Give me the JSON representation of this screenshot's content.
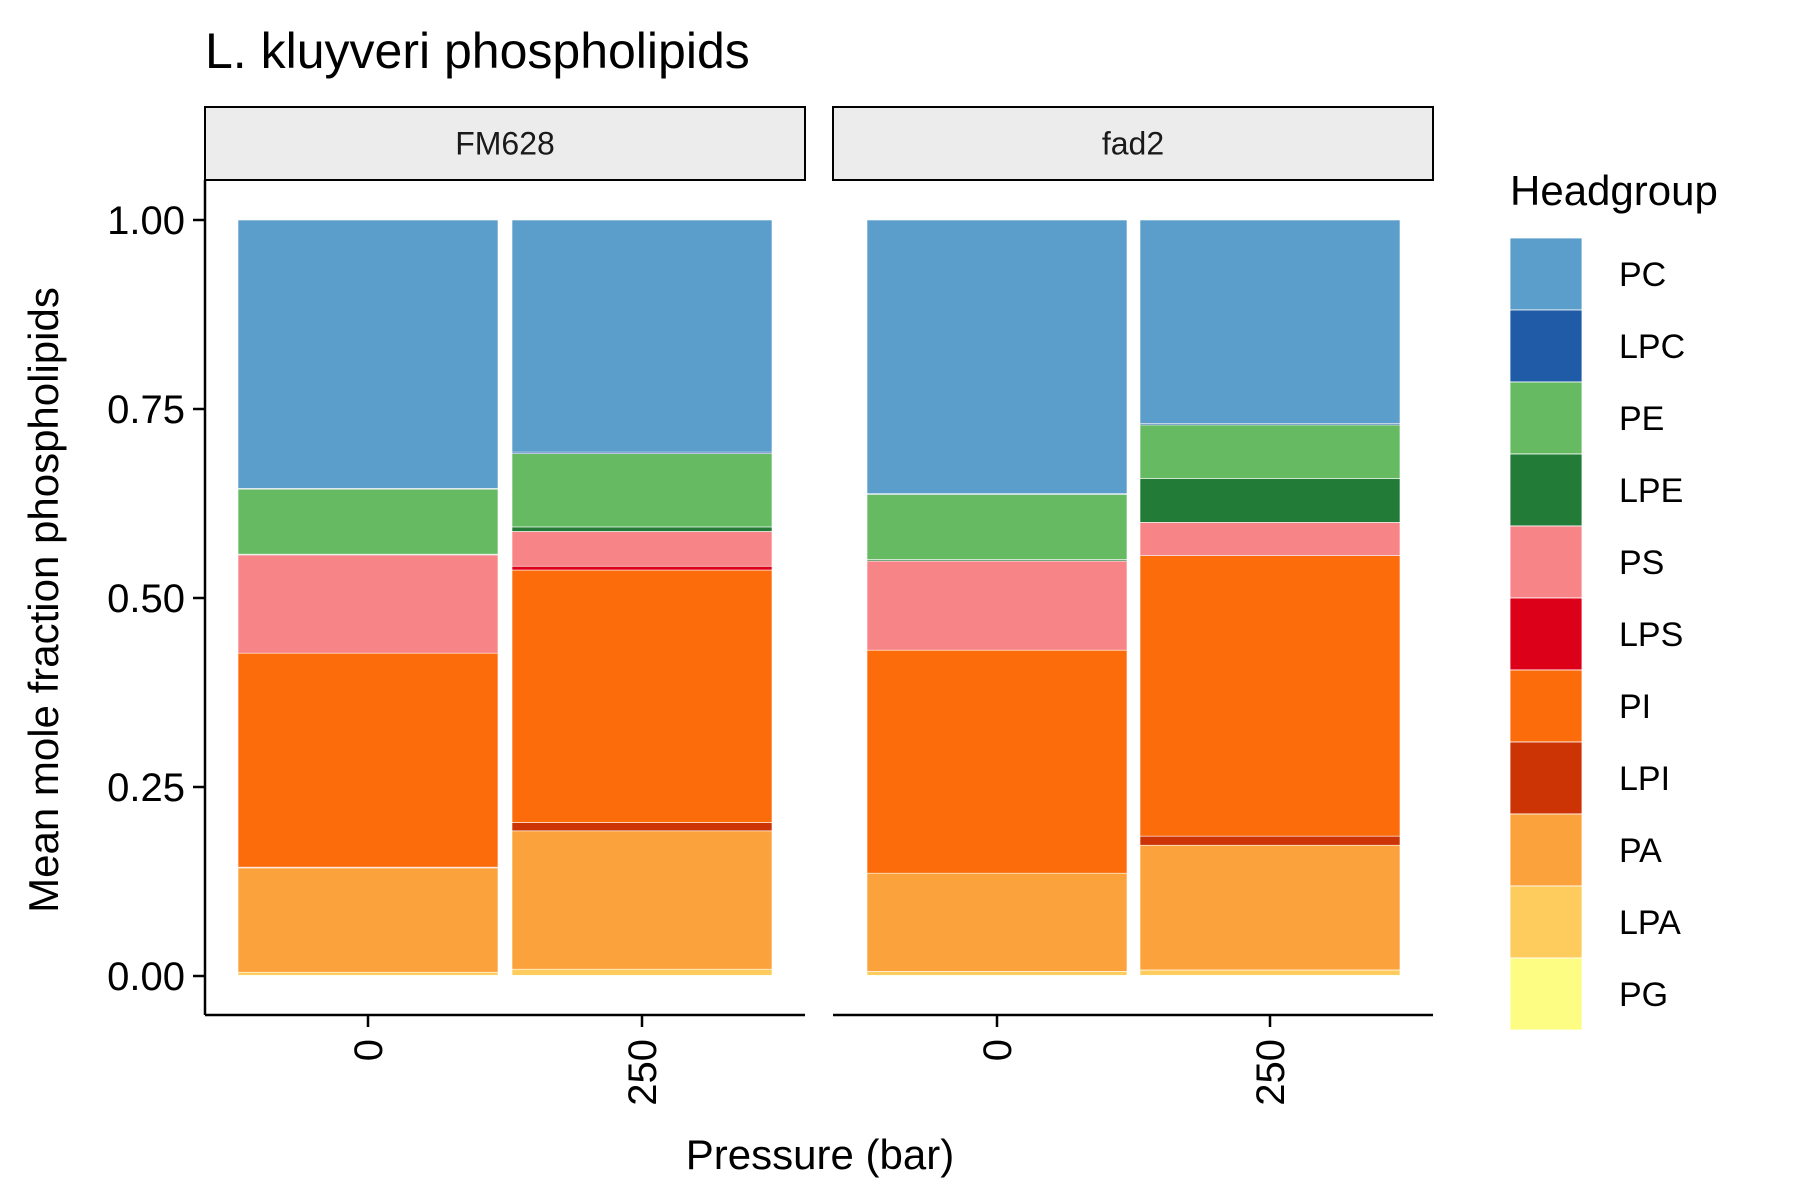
{
  "chart_data": {
    "type": "bar",
    "stacked": true,
    "title": "L. kluyveri phospholipids",
    "xlabel": "Pressure (bar)",
    "ylabel": "Mean mole fraction phospholipids",
    "ylim": [
      0,
      1
    ],
    "yticks": [
      "0.00",
      "0.25",
      "0.50",
      "0.75",
      "1.00"
    ],
    "ytick_values": [
      0,
      0.25,
      0.5,
      0.75,
      1.0
    ],
    "grid": false,
    "legend": {
      "title": "Headgroup",
      "position": "right",
      "entries": [
        "PC",
        "LPC",
        "PE",
        "LPE",
        "PS",
        "LPS",
        "PI",
        "LPI",
        "PA",
        "LPA",
        "PG"
      ]
    },
    "colors": {
      "PC": "#5b9ecb",
      "LPC": "#1f5ba6",
      "PE": "#66bb62",
      "LPE": "#227b36",
      "PS": "#f78587",
      "LPS": "#dc0119",
      "PI": "#fd6c0b",
      "LPI": "#cc3305",
      "PA": "#fca23c",
      "LPA": "#fecc5d",
      "PG": "#fdfd84"
    },
    "stack_order_bottom_to_top": [
      "PG",
      "LPA",
      "PA",
      "LPI",
      "PI",
      "LPS",
      "PS",
      "LPE",
      "PE",
      "LPC",
      "PC"
    ],
    "panels": [
      {
        "strip": "FM628",
        "categories": [
          "0",
          "250"
        ],
        "series": [
          {
            "name": "PG",
            "values": [
              0.001,
              0.001
            ]
          },
          {
            "name": "LPA",
            "values": [
              0.004,
              0.008
            ]
          },
          {
            "name": "PA",
            "values": [
              0.138,
              0.183
            ]
          },
          {
            "name": "LPI",
            "values": [
              0.001,
              0.011
            ]
          },
          {
            "name": "PI",
            "values": [
              0.283,
              0.334
            ]
          },
          {
            "name": "LPS",
            "values": [
              0.0,
              0.005
            ]
          },
          {
            "name": "PS",
            "values": [
              0.13,
              0.046
            ]
          },
          {
            "name": "LPE",
            "values": [
              0.001,
              0.006
            ]
          },
          {
            "name": "PE",
            "values": [
              0.086,
              0.097
            ]
          },
          {
            "name": "LPC",
            "values": [
              0.001,
              0.002
            ]
          },
          {
            "name": "PC",
            "values": [
              0.355,
              0.307
            ]
          }
        ]
      },
      {
        "strip": "fad2",
        "categories": [
          "0",
          "250"
        ],
        "series": [
          {
            "name": "PG",
            "values": [
              0.001,
              0.001
            ]
          },
          {
            "name": "LPA",
            "values": [
              0.005,
              0.007
            ]
          },
          {
            "name": "PA",
            "values": [
              0.13,
              0.165
            ]
          },
          {
            "name": "LPI",
            "values": [
              0.0,
              0.012
            ]
          },
          {
            "name": "PI",
            "values": [
              0.295,
              0.371
            ]
          },
          {
            "name": "LPS",
            "values": [
              0.0,
              0.0
            ]
          },
          {
            "name": "PS",
            "values": [
              0.118,
              0.044
            ]
          },
          {
            "name": "LPE",
            "values": [
              0.002,
              0.058
            ]
          },
          {
            "name": "PE",
            "values": [
              0.086,
              0.071
            ]
          },
          {
            "name": "LPC",
            "values": [
              0.001,
              0.002
            ]
          },
          {
            "name": "PC",
            "values": [
              0.362,
              0.269
            ]
          }
        ]
      }
    ]
  }
}
